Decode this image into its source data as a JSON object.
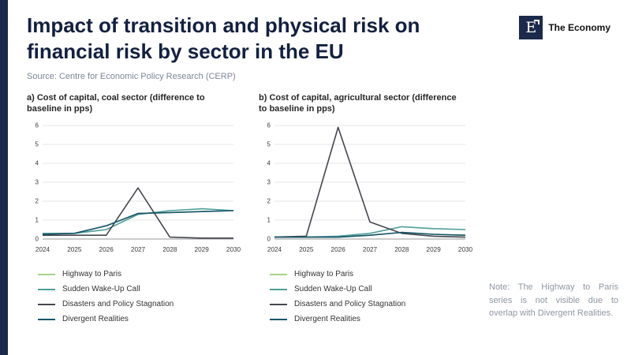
{
  "accent_color": "#1b2a4a",
  "header": {
    "title": "Impact of transition and physical risk on financial risk by sector in the EU",
    "source": "Source: Centre for Economic Policy Research (CERP)",
    "logo": {
      "letter": "E",
      "name": "The Economy"
    }
  },
  "note": "Note: The Highway to Paris series is not visible due to overlap with Divergent Realities.",
  "chart_data": [
    {
      "type": "line",
      "title": "a) Cost of capital, coal sector (difference to baseline in pps)",
      "x": [
        2024,
        2025,
        2026,
        2027,
        2028,
        2029,
        2030
      ],
      "ylim": [
        0,
        6
      ],
      "yticks": [
        0,
        1,
        2,
        3,
        4,
        5,
        6
      ],
      "grid": true,
      "legend_position": "below",
      "series": [
        {
          "name": "Highway to Paris",
          "color": "#a6d388",
          "values": [
            0.25,
            0.3,
            0.7,
            1.35,
            1.4,
            1.45,
            1.5
          ]
        },
        {
          "name": "Sudden Wake-Up Call",
          "color": "#4f9e98",
          "values": [
            0.3,
            0.3,
            0.5,
            1.3,
            1.5,
            1.6,
            1.5
          ]
        },
        {
          "name": "Disasters and Policy Stagnation",
          "color": "#44474f",
          "values": [
            0.2,
            0.2,
            0.2,
            2.7,
            0.1,
            0.05,
            0.05
          ]
        },
        {
          "name": "Divergent Realities",
          "color": "#16546c",
          "values": [
            0.25,
            0.3,
            0.7,
            1.35,
            1.4,
            1.45,
            1.5
          ]
        }
      ]
    },
    {
      "type": "line",
      "title": "b) Cost of capital, agricultural sector (difference to baseline in pps)",
      "x": [
        2024,
        2025,
        2026,
        2027,
        2028,
        2029,
        2030
      ],
      "ylim": [
        0,
        6
      ],
      "yticks": [
        0,
        1,
        2,
        3,
        4,
        5,
        6
      ],
      "grid": true,
      "legend_position": "below",
      "series": [
        {
          "name": "Highway to Paris",
          "color": "#a6d388",
          "values": [
            0.1,
            0.1,
            0.1,
            0.2,
            0.35,
            0.25,
            0.2
          ]
        },
        {
          "name": "Sudden Wake-Up Call",
          "color": "#4f9e98",
          "values": [
            0.1,
            0.1,
            0.15,
            0.3,
            0.65,
            0.55,
            0.5
          ]
        },
        {
          "name": "Disasters and Policy Stagnation",
          "color": "#44474f",
          "values": [
            0.1,
            0.15,
            5.9,
            0.9,
            0.3,
            0.15,
            0.1
          ]
        },
        {
          "name": "Divergent Realities",
          "color": "#16546c",
          "values": [
            0.1,
            0.1,
            0.1,
            0.2,
            0.35,
            0.25,
            0.2
          ]
        }
      ]
    }
  ]
}
